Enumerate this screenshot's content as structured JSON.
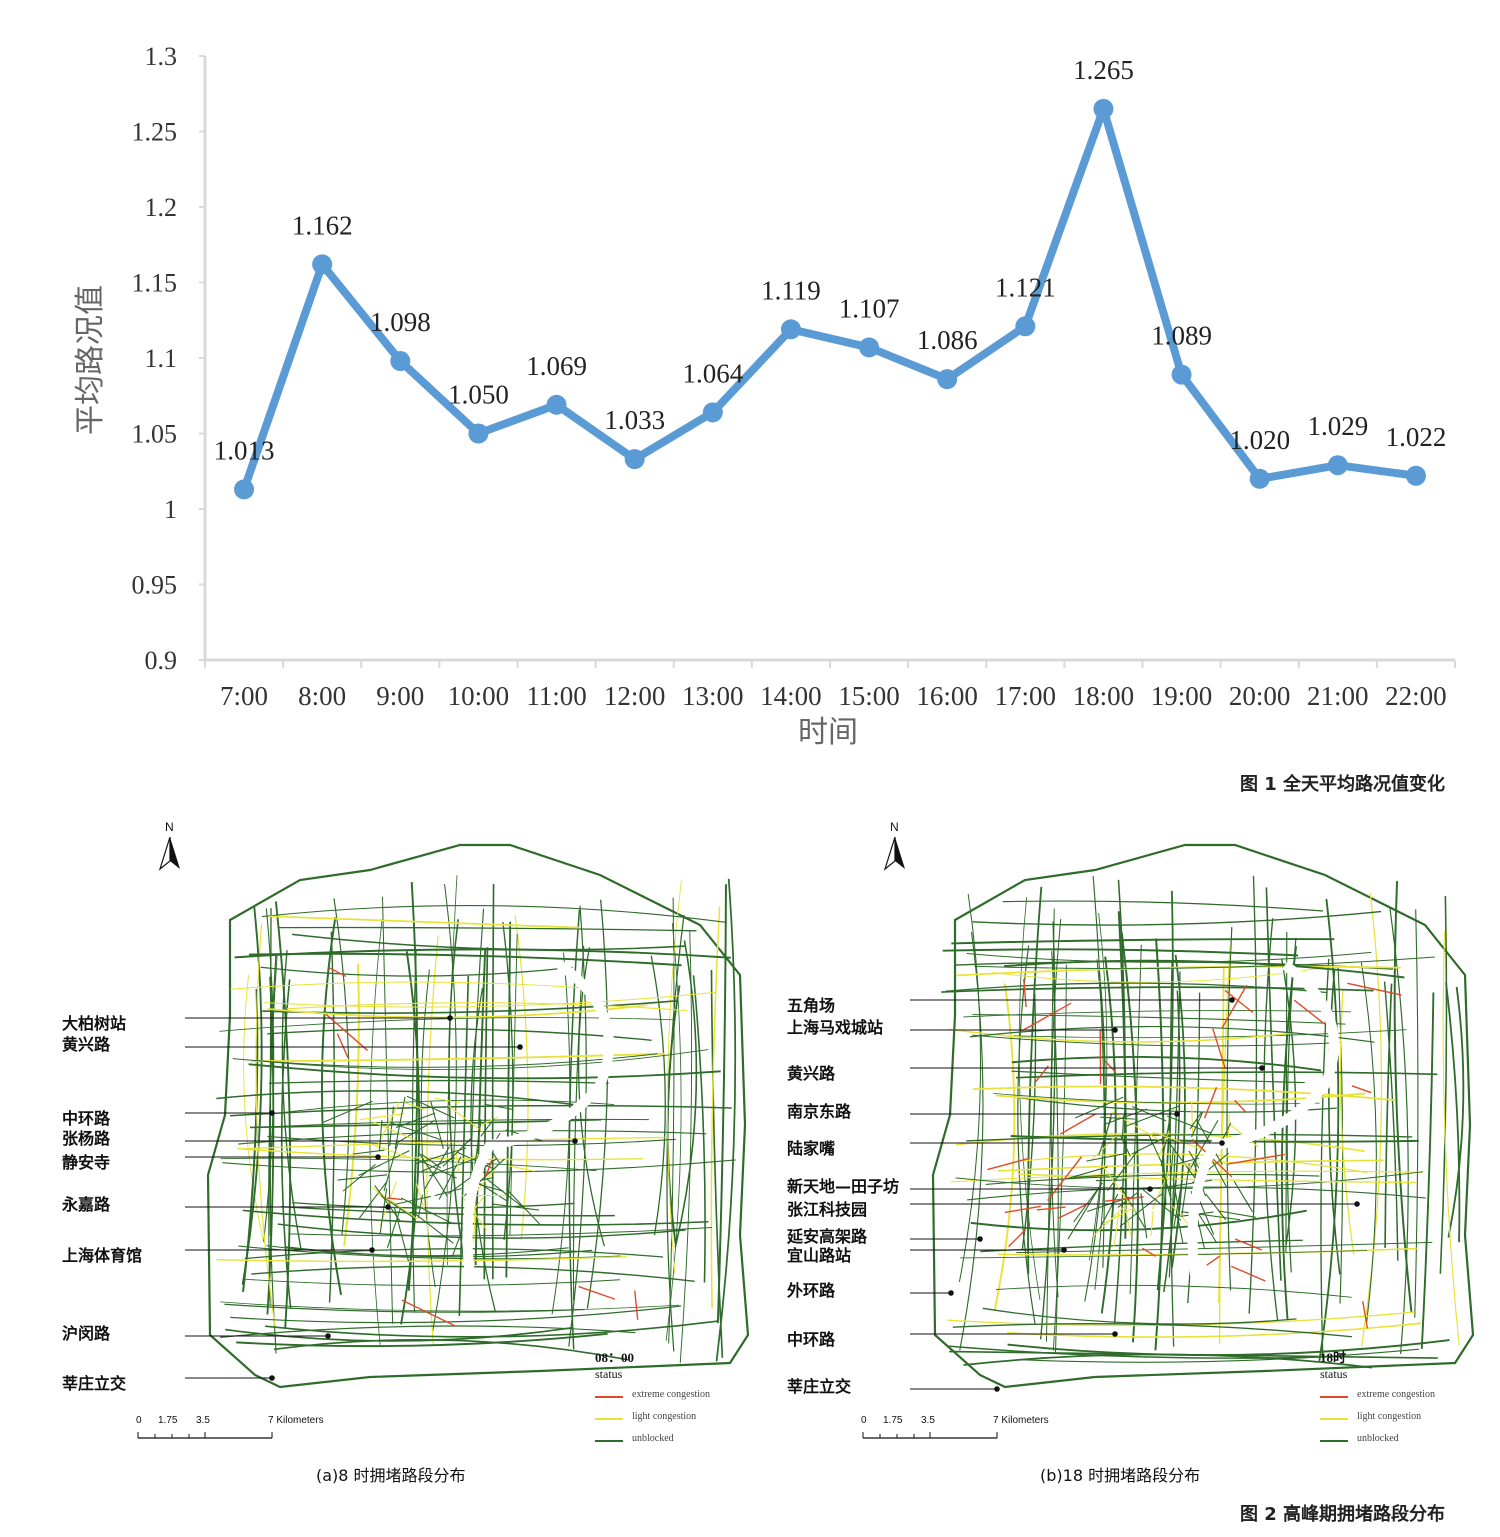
{
  "chart_data": {
    "type": "line",
    "categories": [
      "7:00",
      "8:00",
      "9:00",
      "10:00",
      "11:00",
      "12:00",
      "13:00",
      "14:00",
      "15:00",
      "16:00",
      "17:00",
      "18:00",
      "19:00",
      "20:00",
      "21:00",
      "22:00"
    ],
    "values": [
      1.013,
      1.162,
      1.098,
      1.05,
      1.069,
      1.033,
      1.064,
      1.119,
      1.107,
      1.086,
      1.121,
      1.265,
      1.089,
      1.02,
      1.029,
      1.022
    ],
    "data_labels": [
      "1.013",
      "1.162",
      "1.098",
      "1.050",
      "1.069",
      "1.033",
      "1.064",
      "1.119",
      "1.107",
      "1.086",
      "1.121",
      "1.265",
      "1.089",
      "1.020",
      "1.029",
      "1.022"
    ],
    "ylabel": "平均路况值",
    "xlabel": "时间",
    "ylim": [
      0.9,
      1.3
    ],
    "yticks": [
      "0.9",
      "0.95",
      "1",
      "1.05",
      "1.1",
      "1.15",
      "1.2",
      "1.25",
      "1.3"
    ],
    "ytick_values": [
      0.9,
      0.95,
      1.0,
      1.05,
      1.1,
      1.15,
      1.2,
      1.25,
      1.3
    ],
    "grid": false,
    "line_color": "#5b9bd5"
  },
  "captions": {
    "fig1": "图 1  全天平均路况值变化",
    "fig2": "图 2  高峰期拥堵路段分布"
  },
  "maps": {
    "north": "N",
    "scale_ticks": [
      "0",
      "1.75",
      "3.5",
      "7 Kilometers"
    ],
    "legend": {
      "status": "status",
      "items": [
        {
          "label": "extreme congestion",
          "color": "#e04a2a"
        },
        {
          "label": "light congestion",
          "color": "#e8e23a"
        },
        {
          "label": "unblocked",
          "color": "#2f6b2a"
        }
      ]
    },
    "a": {
      "time": "08：00",
      "subcaption": "(a)8 时拥堵路段分布",
      "places": [
        "大柏树站",
        "黄兴路",
        "中环路",
        "张杨路",
        "静安寺",
        "永嘉路",
        "上海体育馆",
        "沪闵路",
        "莘庄立交"
      ]
    },
    "b": {
      "time": "18时",
      "subcaption": "(b)18 时拥堵路段分布",
      "places": [
        "五角场",
        "上海马戏城站",
        "黄兴路",
        "南京东路",
        "陆家嘴",
        "新天地—田子坊",
        "张江科技园",
        "延安高架路",
        "宜山路站",
        "外环路",
        "中环路",
        "莘庄立交"
      ]
    }
  }
}
